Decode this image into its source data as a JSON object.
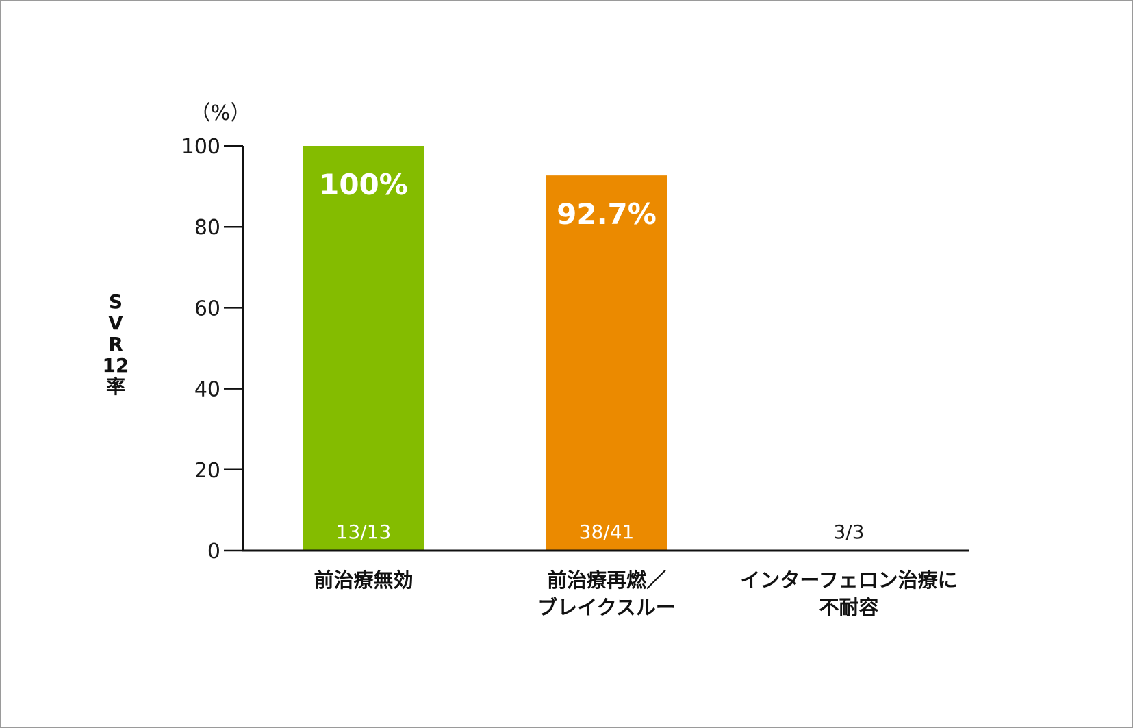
{
  "chart_data": {
    "type": "bar",
    "categories": [
      [
        "前治療無効"
      ],
      [
        "前治療再燃／",
        "ブレイクスルー"
      ],
      [
        "インターフェロン治療に",
        "不耐容"
      ]
    ],
    "values": [
      100,
      92.7,
      null
    ],
    "value_labels": [
      "100%",
      "92.7%",
      ""
    ],
    "counts": [
      "13/13",
      "38/41",
      "3/3"
    ],
    "colors": [
      "#84bc00",
      "#eb8a00",
      "#ffffff"
    ],
    "ylabel": "SVR12率",
    "unit_label": "（%）",
    "ylim": [
      0,
      100
    ],
    "yticks": [
      0,
      20,
      40,
      60,
      80,
      100
    ],
    "grid": false,
    "legend": "none"
  }
}
